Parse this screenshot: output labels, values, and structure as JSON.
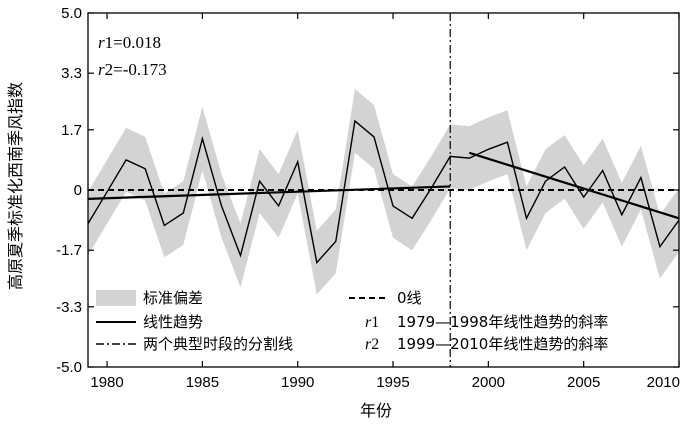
{
  "chart_data": {
    "type": "line",
    "xlabel": "年份",
    "ylabel": "高原夏季标准化西南季风指数",
    "xlim": [
      1979,
      2010
    ],
    "ylim": [
      -5.0,
      5.0
    ],
    "x_ticks": [
      "1980",
      "1985",
      "1990",
      "1995",
      "2000",
      "2005",
      "2010"
    ],
    "y_ticks": [
      "5.0",
      "3.3",
      "1.7",
      "0",
      "-1.7",
      "-3.3",
      "-5.0"
    ],
    "x": [
      1979,
      1980,
      1981,
      1982,
      1983,
      1984,
      1985,
      1986,
      1987,
      1988,
      1989,
      1990,
      1991,
      1992,
      1993,
      1994,
      1995,
      1996,
      1997,
      1998,
      1999,
      2000,
      2001,
      2002,
      2003,
      2004,
      2005,
      2006,
      2007,
      2008,
      2009,
      2010
    ],
    "series": [
      {
        "name": "standardized_index",
        "values": [
          -0.95,
          -0.05,
          0.85,
          0.6,
          -1.0,
          -0.65,
          1.45,
          -0.45,
          -1.85,
          0.25,
          -0.45,
          0.8,
          -2.05,
          -1.45,
          1.95,
          1.5,
          -0.45,
          -0.8,
          0.05,
          0.95,
          0.9,
          1.15,
          1.35,
          -0.8,
          0.25,
          0.65,
          -0.2,
          0.55,
          -0.7,
          0.35,
          -1.6,
          -0.85
        ]
      }
    ],
    "band_halfwidth": 0.9,
    "trend_1": {
      "x": [
        1979,
        1998
      ],
      "y": [
        -0.25,
        0.1
      ]
    },
    "trend_2": {
      "x": [
        1999,
        2010
      ],
      "y": [
        1.05,
        -0.8
      ]
    },
    "zero_line": 0,
    "divider_x": 1998,
    "annotations": [
      {
        "italic": "r",
        "text": "1=0.018"
      },
      {
        "italic": "r",
        "text": "2=-0.173"
      }
    ],
    "legend": {
      "position": "bottom",
      "items": [
        {
          "type": "band",
          "label": "标准偏差"
        },
        {
          "type": "dashed",
          "label": "0线"
        },
        {
          "type": "solid",
          "label": "线性趋势"
        },
        {
          "type": "text",
          "italic": "r",
          "num": "1",
          "label": "1979—1998年线性趋势的斜率"
        },
        {
          "type": "dashdot",
          "label": "两个典型时段的分割线"
        },
        {
          "type": "text",
          "italic": "r",
          "num": "2",
          "label": "1999—2010年线性趋势的斜率"
        }
      ]
    },
    "colors": {
      "band": "#d3d3d3",
      "line": "#000000"
    }
  }
}
